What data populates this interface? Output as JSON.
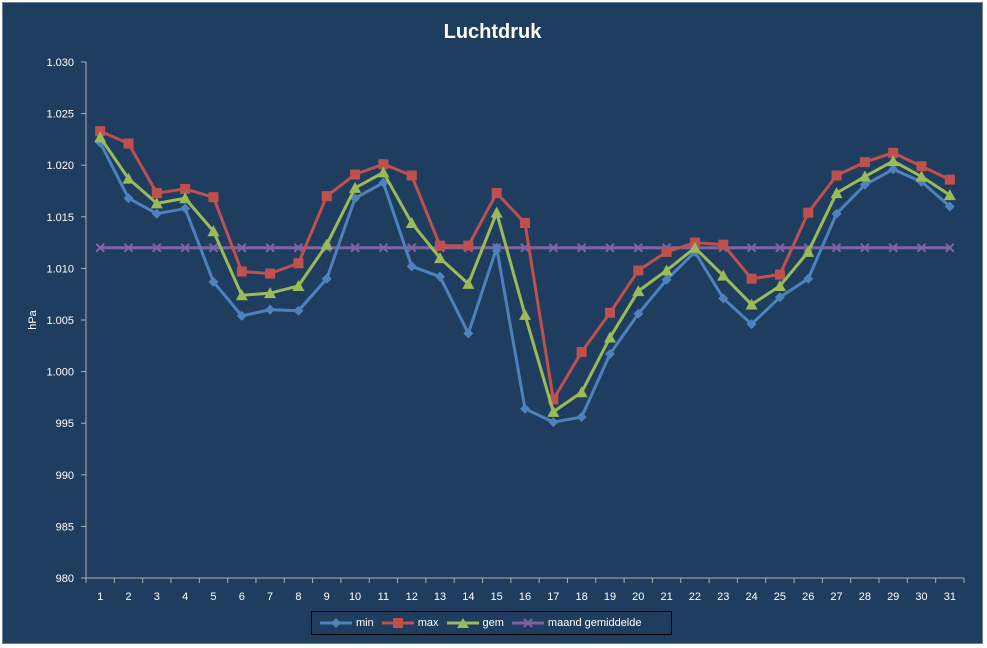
{
  "chart_data": {
    "type": "line",
    "title": "Luchtdruk",
    "ylabel": "hPa",
    "xlabel": "",
    "ylim": [
      980,
      1030
    ],
    "yticks": [
      "980",
      "985",
      "990",
      "995",
      "1.000",
      "1.005",
      "1.010",
      "1.015",
      "1.020",
      "1.025",
      "1.030"
    ],
    "categories": [
      "1",
      "2",
      "3",
      "4",
      "5",
      "6",
      "7",
      "8",
      "9",
      "10",
      "11",
      "12",
      "13",
      "14",
      "15",
      "16",
      "17",
      "18",
      "19",
      "20",
      "21",
      "22",
      "23",
      "24",
      "25",
      "26",
      "27",
      "28",
      "29",
      "30",
      "31"
    ],
    "grid": false,
    "legend_position": "bottom",
    "series": [
      {
        "name": "min",
        "color": "#4f81bd",
        "marker": "diamond",
        "values": [
          1022.2,
          1016.8,
          1015.3,
          1015.8,
          1008.7,
          1005.4,
          1006.0,
          1005.9,
          1009.0,
          1016.8,
          1018.3,
          1010.2,
          1009.2,
          1003.7,
          1012.0,
          996.4,
          995.1,
          995.6,
          1001.7,
          1005.6,
          1008.9,
          1011.6,
          1007.1,
          1004.6,
          1007.2,
          1009.0,
          1015.3,
          1018.1,
          1019.6,
          1018.4,
          1016.0
        ]
      },
      {
        "name": "max",
        "color": "#c0504d",
        "marker": "square",
        "values": [
          1023.3,
          1022.1,
          1017.3,
          1017.7,
          1016.9,
          1009.7,
          1009.5,
          1010.5,
          1017.0,
          1019.1,
          1020.1,
          1019.0,
          1012.2,
          1012.2,
          1017.3,
          1014.4,
          997.3,
          1001.9,
          1005.7,
          1009.8,
          1011.6,
          1012.5,
          1012.3,
          1009.0,
          1009.4,
          1015.4,
          1019.0,
          1020.3,
          1021.2,
          1019.9,
          1018.6
        ]
      },
      {
        "name": "gem",
        "color": "#9bbb59",
        "marker": "triangle",
        "values": [
          1022.7,
          1018.7,
          1016.3,
          1016.8,
          1013.6,
          1007.4,
          1007.6,
          1008.3,
          1012.3,
          1017.8,
          1019.3,
          1014.4,
          1011.0,
          1008.5,
          1015.4,
          1005.5,
          996.1,
          998.0,
          1003.3,
          1007.8,
          1009.8,
          1012.0,
          1009.3,
          1006.5,
          1008.3,
          1011.6,
          1017.3,
          1018.9,
          1020.4,
          1018.9,
          1017.1
        ]
      },
      {
        "name": "maand gemiddelde",
        "color": "#8064a2",
        "marker": "x",
        "values": [
          1012,
          1012,
          1012,
          1012,
          1012,
          1012,
          1012,
          1012,
          1012,
          1012,
          1012,
          1012,
          1012,
          1012,
          1012,
          1012,
          1012,
          1012,
          1012,
          1012,
          1012,
          1012,
          1012,
          1012,
          1012,
          1012,
          1012,
          1012,
          1012,
          1012,
          1012
        ]
      }
    ]
  }
}
